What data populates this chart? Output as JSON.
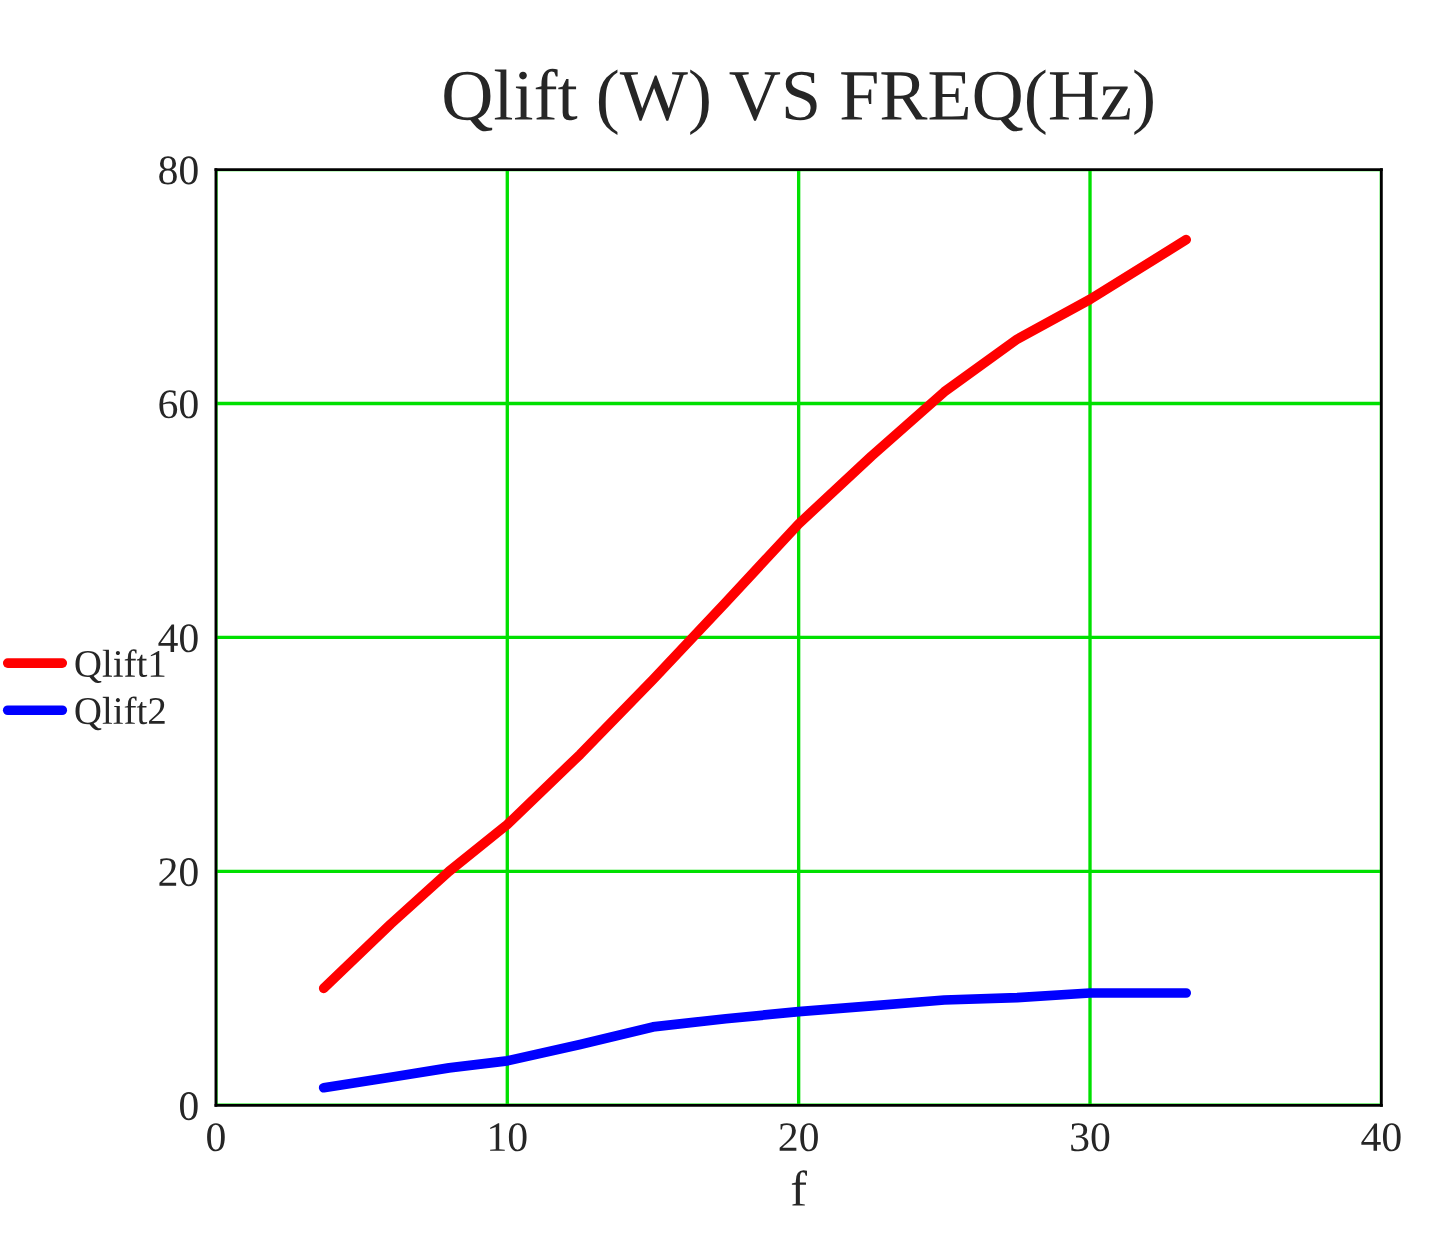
{
  "chart_data": {
    "type": "line",
    "title": "Qlift (W) VS FREQ(Hz)",
    "xlabel": "f",
    "x": [
      3.7,
      6,
      8,
      10,
      12.5,
      15,
      17.5,
      20,
      22.5,
      25,
      27.5,
      30,
      33.3
    ],
    "series": [
      {
        "name": "Qlift1",
        "color": "#ff0000",
        "values": [
          10,
          15.5,
          20,
          24,
          30,
          36.4,
          43,
          49.7,
          55.5,
          61,
          65.5,
          68.9,
          74
        ]
      },
      {
        "name": "Qlift2",
        "color": "#0000ff",
        "values": [
          1.5,
          2.4,
          3.2,
          3.8,
          5.2,
          6.7,
          7.4,
          8,
          8.5,
          9,
          9.2,
          9.6,
          9.6
        ]
      }
    ],
    "xlim": [
      0,
      40
    ],
    "xticks": [
      0,
      10,
      20,
      30,
      40
    ],
    "ylim": [
      0,
      80
    ],
    "yticks": [
      0,
      20,
      40,
      60,
      80
    ],
    "grid": true,
    "legend": "left",
    "line_style": "solid",
    "marker": "none"
  }
}
